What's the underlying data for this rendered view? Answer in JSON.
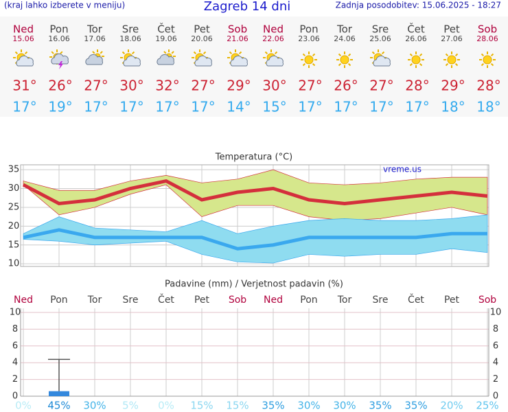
{
  "header": {
    "note": "(kraj lahko izberete v meniju)",
    "title": "Zagreb 14 dni",
    "updated": "Zadnja posodobitev: 15.06.2025 - 18:27"
  },
  "days": {
    "names": [
      "Ned",
      "Pon",
      "Tor",
      "Sre",
      "Čet",
      "Pet",
      "Sob",
      "Ned",
      "Pon",
      "Tor",
      "Sre",
      "Čet",
      "Pet",
      "Sob"
    ],
    "dates": [
      "15.06",
      "16.06",
      "17.06",
      "18.06",
      "19.06",
      "20.06",
      "21.06",
      "22.06",
      "23.06",
      "24.06",
      "25.06",
      "26.06",
      "27.06",
      "28.06"
    ],
    "name_colors": [
      "#b0003c",
      "#444444",
      "#444444",
      "#444444",
      "#444444",
      "#444444",
      "#b0003c",
      "#b0003c",
      "#444444",
      "#444444",
      "#444444",
      "#444444",
      "#444444",
      "#b0003c"
    ],
    "icons": [
      "sun-cloud",
      "storm",
      "cloud",
      "sun-cloud",
      "cloud",
      "sun-cloud",
      "sun-cloud",
      "sun-cloud",
      "sun",
      "sun",
      "sun-cloud",
      "sun",
      "sun",
      "sun"
    ],
    "tmax": [
      "31°",
      "26°",
      "27°",
      "30°",
      "32°",
      "27°",
      "29°",
      "30°",
      "27°",
      "26°",
      "27°",
      "28°",
      "29°",
      "28°"
    ],
    "tmin": [
      "17°",
      "19°",
      "17°",
      "17°",
      "17°",
      "17°",
      "14°",
      "15°",
      "17°",
      "17°",
      "17°",
      "17°",
      "18°",
      "18°"
    ],
    "tmax_color": "#cc2233",
    "tmin_color": "#33aaee"
  },
  "chart_data": [
    {
      "type": "line",
      "title": "Temperatura (°C)",
      "annotation": "vreme.us",
      "ylim": [
        9.3,
        36.3
      ],
      "yticks": [
        10,
        15,
        20,
        25,
        30,
        35
      ],
      "grid": true,
      "series": [
        {
          "color": "#d42f3c",
          "band_color": "#d6e78c",
          "values": [
            31,
            26,
            27,
            30,
            32,
            27,
            29,
            30,
            27,
            26,
            27,
            28,
            29,
            28
          ],
          "band_upper": [
            32,
            29.5,
            29.5,
            32,
            33.5,
            31.5,
            32.5,
            35,
            31.5,
            31,
            31.5,
            32.5,
            33,
            33
          ],
          "band_lower": [
            31,
            23,
            25,
            28.5,
            31,
            22.5,
            25.5,
            25.5,
            22.5,
            21.5,
            22,
            23.5,
            25,
            23
          ]
        },
        {
          "color": "#3aa8ee",
          "band_color": "#8fdcf0",
          "values": [
            17,
            19,
            17,
            17,
            17,
            17,
            14,
            15,
            17,
            17,
            17,
            17,
            18,
            18
          ],
          "band_upper": [
            18,
            22.5,
            19.5,
            19,
            18.5,
            21.5,
            18,
            20,
            21.5,
            22,
            21.5,
            21.5,
            22,
            23
          ],
          "band_lower": [
            16.5,
            16,
            15,
            15.5,
            16,
            12.5,
            10.5,
            10.2,
            12.5,
            12,
            12.5,
            12.5,
            14,
            13
          ]
        }
      ]
    },
    {
      "type": "bar",
      "title": "Padavine (mm) / Verjetnost padavin (%)",
      "categories": [
        "Ned",
        "Pon",
        "Tor",
        "Sre",
        "Čet",
        "Pet",
        "Sob",
        "Ned",
        "Pon",
        "Tor",
        "Sre",
        "Čet",
        "Pet",
        "Sob"
      ],
      "category_colors": [
        "#b0003c",
        "#444444",
        "#444444",
        "#444444",
        "#444444",
        "#444444",
        "#b0003c",
        "#b0003c",
        "#444444",
        "#444444",
        "#444444",
        "#444444",
        "#444444",
        "#b0003c"
      ],
      "ylim": [
        0,
        10
      ],
      "yticks": [
        0,
        2,
        4,
        6,
        8,
        10
      ],
      "y2lim": [
        0,
        10
      ],
      "y2ticks": [
        0,
        2,
        4,
        6,
        8,
        10
      ],
      "grid": true,
      "series": [
        {
          "color": "#3388dd",
          "values": [
            0,
            0.6,
            0,
            0,
            0,
            0,
            0,
            0,
            0,
            0,
            0,
            0,
            0,
            0
          ],
          "errors": [
            0,
            3.8,
            0,
            0,
            0,
            0,
            0,
            0,
            0,
            0,
            0,
            0,
            0,
            0
          ]
        }
      ],
      "probability": {
        "values": [
          0,
          45,
          30,
          5,
          0,
          15,
          15,
          35,
          30,
          30,
          35,
          35,
          20,
          25
        ],
        "value_labels": [
          "0%",
          "45%",
          "30%",
          "5%",
          "0%",
          "15%",
          "15%",
          "35%",
          "30%",
          "30%",
          "35%",
          "35%",
          "20%",
          "25%"
        ],
        "colors": [
          "#b8ecf6",
          "#1e8ad6",
          "#44b4e8",
          "#b0e8f6",
          "#b8ecf6",
          "#8ad6f0",
          "#8ad6f0",
          "#2e9ee0",
          "#44b4e8",
          "#44b4e8",
          "#2e9ee0",
          "#2e9ee0",
          "#70ccf0",
          "#60c4ee"
        ]
      }
    }
  ]
}
